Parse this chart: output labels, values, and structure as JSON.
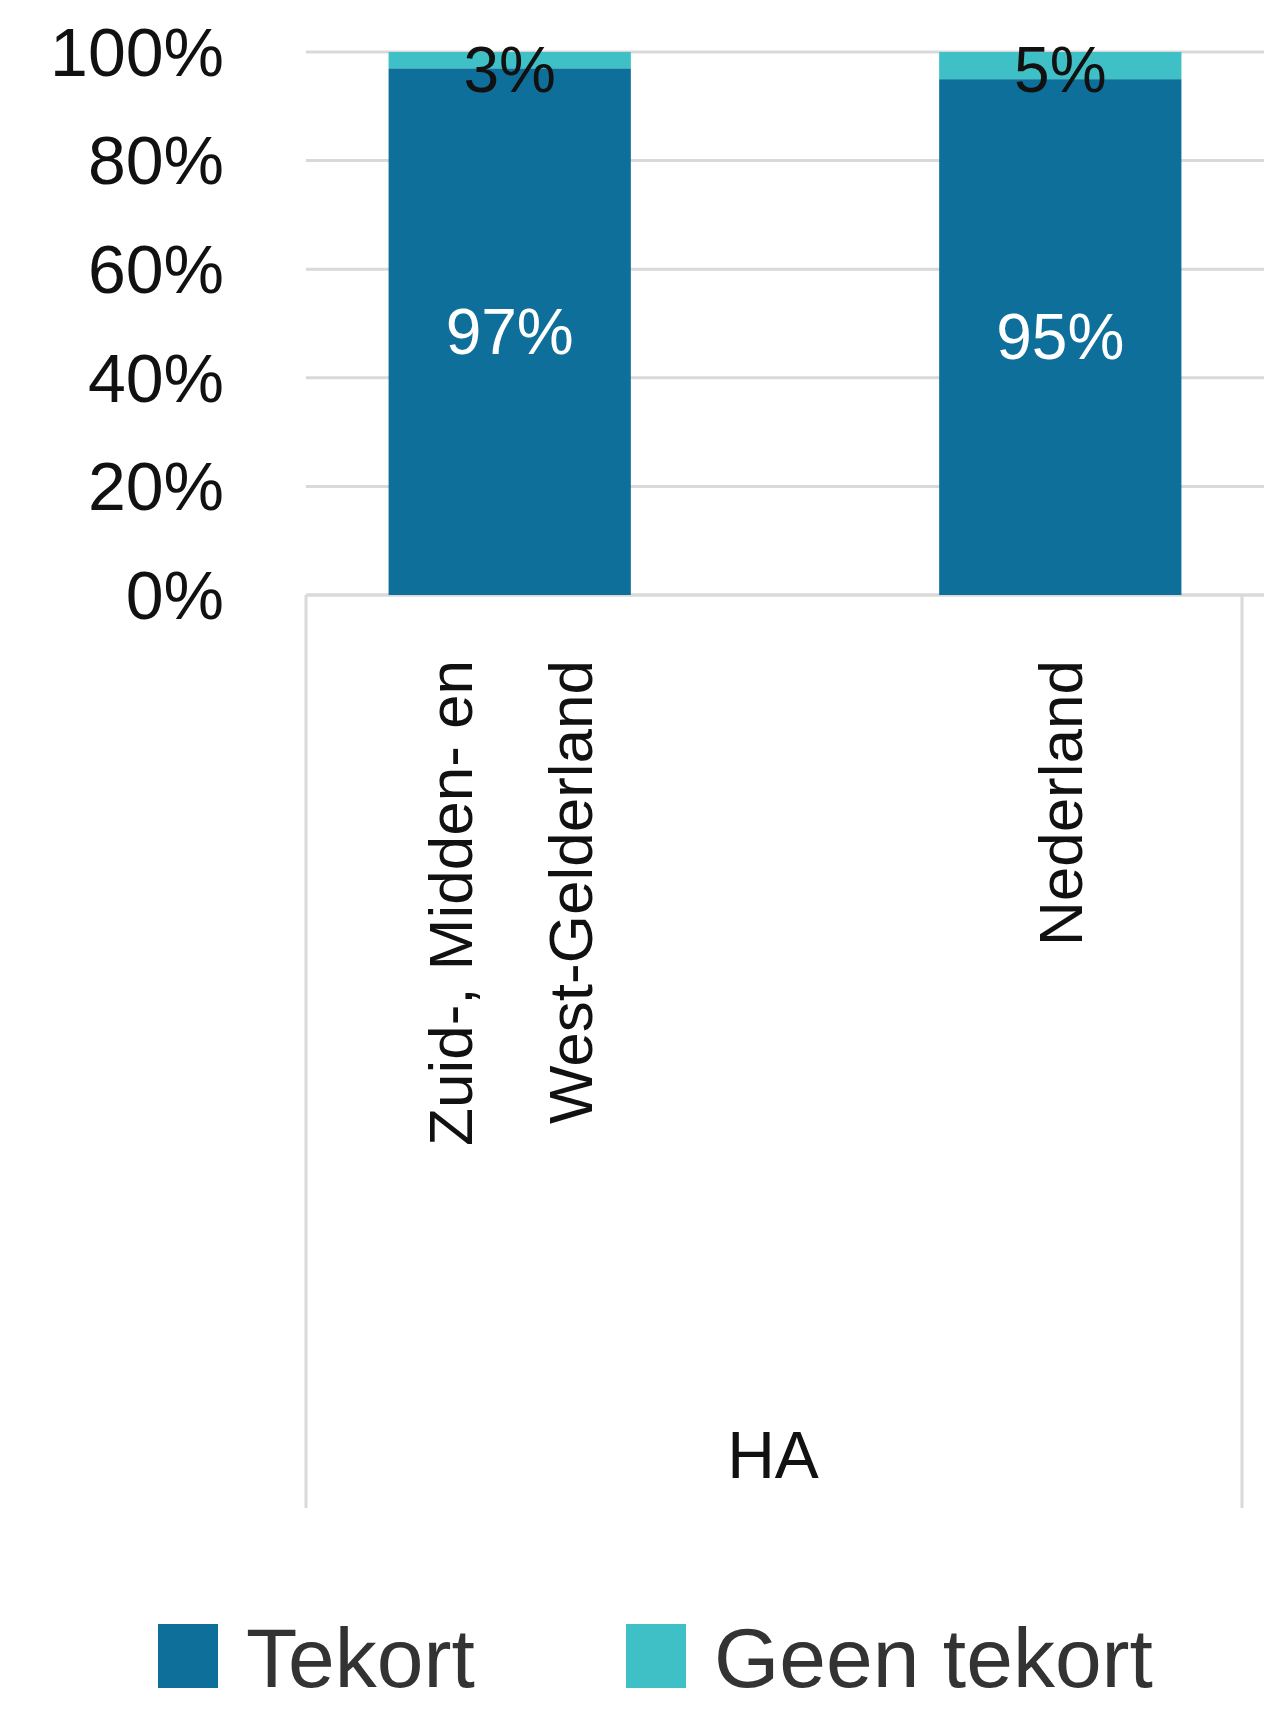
{
  "chart_data": {
    "type": "bar",
    "stacked": true,
    "xlabel": "HA",
    "categories": [
      "Zuid-, Midden- en West-Gelderland",
      "Nederland"
    ],
    "series": [
      {
        "name": "Tekort",
        "color": "#0f6f9b",
        "values": [
          97,
          95
        ],
        "value_labels": [
          "97%",
          "95%"
        ]
      },
      {
        "name": "Geen tekort",
        "color": "#3fbfc6",
        "values": [
          3,
          5
        ],
        "value_labels": [
          "3%",
          "5%"
        ]
      }
    ],
    "ylim": [
      0,
      100
    ],
    "yticks": [
      {
        "value": 0,
        "label": "0%"
      },
      {
        "value": 20,
        "label": "20%"
      },
      {
        "value": 40,
        "label": "40%"
      },
      {
        "value": 60,
        "label": "60%"
      },
      {
        "value": 80,
        "label": "80%"
      },
      {
        "value": 100,
        "label": "100%"
      }
    ],
    "grid": "y",
    "legend": "bottom"
  }
}
